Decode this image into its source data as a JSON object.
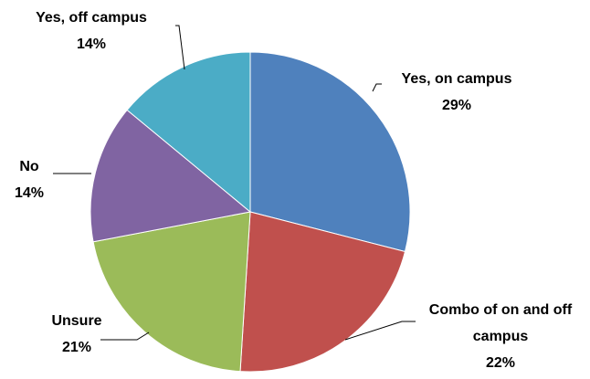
{
  "chart_data": {
    "type": "pie",
    "categories": [
      "Yes, on campus",
      "Combo of on and off campus",
      "Unsure",
      "No",
      "Yes, off campus"
    ],
    "values": [
      29,
      22,
      21,
      14,
      14
    ],
    "value_labels": [
      "29%",
      "22%",
      "21%",
      "14%",
      "14%"
    ],
    "colors": [
      "#4f81bd",
      "#c0504d",
      "#9bbb59",
      "#8064a2",
      "#4bacc6"
    ]
  }
}
